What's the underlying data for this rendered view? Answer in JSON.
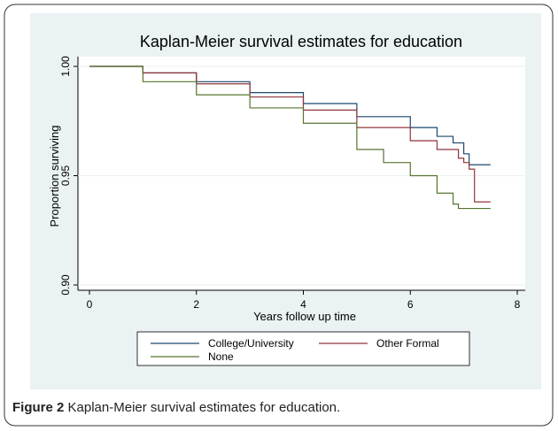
{
  "chart_data": {
    "type": "step",
    "title": "Kaplan-Meier survival estimates for education",
    "xlabel": "Years follow up time",
    "ylabel": "Proportion surviving",
    "xlim": [
      0,
      8
    ],
    "xticks": [
      0,
      2,
      4,
      6,
      8
    ],
    "ylim": [
      0.9,
      1.0
    ],
    "yticks": [
      {
        "value": 0.9,
        "label": "0.90"
      },
      {
        "value": 0.95,
        "label": "0.95"
      },
      {
        "value": 1.0,
        "label": "1.00"
      }
    ],
    "grid": true,
    "legend": "bottom",
    "series": [
      {
        "name": "College/University",
        "color": "#1a476f",
        "x": [
          0,
          1,
          2,
          3,
          4,
          5,
          6,
          6.5,
          6.8,
          7.0,
          7.1,
          7.5
        ],
        "values": [
          1.0,
          0.997,
          0.993,
          0.988,
          0.983,
          0.977,
          0.972,
          0.968,
          0.965,
          0.96,
          0.955,
          0.955
        ]
      },
      {
        "name": "Other Formal",
        "color": "#90353b",
        "x": [
          0,
          1,
          2,
          3,
          4,
          5,
          6,
          6.5,
          6.9,
          7.0,
          7.1,
          7.2,
          7.5
        ],
        "values": [
          1.0,
          0.997,
          0.992,
          0.986,
          0.98,
          0.972,
          0.966,
          0.962,
          0.958,
          0.956,
          0.953,
          0.938,
          0.938
        ]
      },
      {
        "name": "None",
        "color": "#55752f",
        "x": [
          0,
          1,
          2,
          3,
          4,
          5,
          5.5,
          6,
          6.5,
          6.8,
          6.9,
          7.5
        ],
        "values": [
          1.0,
          0.993,
          0.987,
          0.981,
          0.974,
          0.962,
          0.956,
          0.95,
          0.942,
          0.937,
          0.935,
          0.935
        ]
      }
    ]
  },
  "caption": {
    "label": "Figure 2",
    "text": "Kaplan-Meier survival estimates for education."
  }
}
